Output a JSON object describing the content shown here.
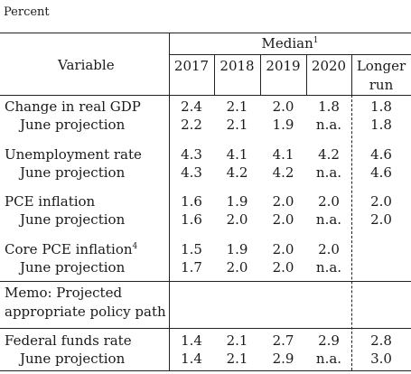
{
  "caption": "Percent",
  "header": {
    "variable": "Variable",
    "median": "Median",
    "median_note": "1",
    "years": [
      "2017",
      "2018",
      "2019",
      "2020"
    ],
    "longer_run_line1": "Longer",
    "longer_run_line2": "run"
  },
  "rows": {
    "gdp": {
      "label": "Change in real GDP",
      "values": [
        "2.4",
        "2.1",
        "2.0",
        "1.8",
        "1.8"
      ]
    },
    "gdp_june": {
      "label": "June projection",
      "values": [
        "2.2",
        "2.1",
        "1.9",
        "n.a.",
        "1.8"
      ]
    },
    "unemp": {
      "label": "Unemployment rate",
      "values": [
        "4.3",
        "4.1",
        "4.1",
        "4.2",
        "4.6"
      ]
    },
    "unemp_june": {
      "label": "June projection",
      "values": [
        "4.3",
        "4.2",
        "4.2",
        "n.a.",
        "4.6"
      ]
    },
    "pce": {
      "label": "PCE inflation",
      "values": [
        "1.6",
        "1.9",
        "2.0",
        "2.0",
        "2.0"
      ]
    },
    "pce_june": {
      "label": "June projection",
      "values": [
        "1.6",
        "2.0",
        "2.0",
        "n.a.",
        "2.0"
      ]
    },
    "core": {
      "label": "Core PCE inflation",
      "note": "4",
      "values": [
        "1.5",
        "1.9",
        "2.0",
        "2.0",
        ""
      ]
    },
    "core_june": {
      "label": "June projection",
      "values": [
        "1.7",
        "2.0",
        "2.0",
        "n.a.",
        ""
      ]
    },
    "memo_line1": "Memo: Projected",
    "memo_line2": "appropriate policy path",
    "ffr": {
      "label": "Federal funds rate",
      "values": [
        "1.4",
        "2.1",
        "2.7",
        "2.9",
        "2.8"
      ]
    },
    "ffr_june": {
      "label": "June projection",
      "values": [
        "1.4",
        "2.1",
        "2.9",
        "n.a.",
        "3.0"
      ]
    }
  }
}
